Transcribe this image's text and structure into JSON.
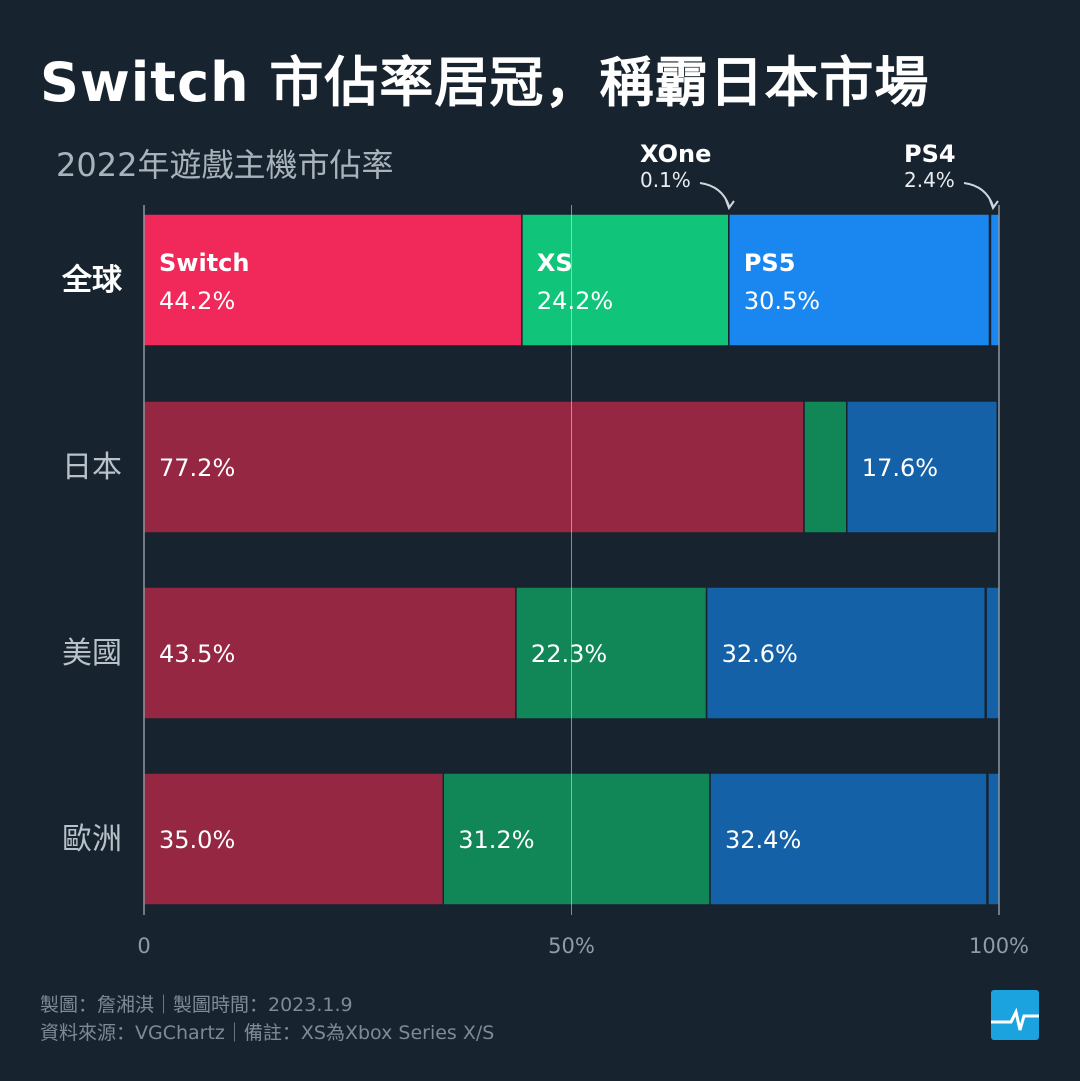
{
  "title": "Switch 市佔率居冠，稱霸日本市場",
  "subtitle": "2022年遊戲主機市佔率",
  "annotations": [
    {
      "name": "XOne",
      "value": "0.1%"
    },
    {
      "name": "PS4",
      "value": "2.4%"
    }
  ],
  "colors": {
    "background": "#17232e",
    "highlight": {
      "Switch": "#f0295a",
      "XS": "#10c57a",
      "PS5": "#1a86f0",
      "XOne": "#1a86f0",
      "PS4": "#1a86f0"
    },
    "muted": {
      "Switch": "#952743",
      "XS": "#118758",
      "PS5": "#1461a7",
      "XOne": "#1461a7",
      "PS4": "#1461a7"
    }
  },
  "chart_data": {
    "type": "bar",
    "orientation": "horizontal",
    "stacked": true,
    "title": "2022年遊戲主機市佔率",
    "categories": [
      "全球",
      "日本",
      "美國",
      "歐洲"
    ],
    "series": [
      {
        "name": "Switch",
        "values": [
          44.2,
          77.2,
          43.5,
          35.0
        ],
        "labels": [
          "44.2%",
          "77.2%",
          "43.5%",
          "35.0%"
        ]
      },
      {
        "name": "XS",
        "values": [
          24.2,
          5.0,
          22.3,
          31.2
        ],
        "labels": [
          "24.2%",
          null,
          "22.3%",
          "31.2%"
        ]
      },
      {
        "name": "PS5",
        "values": [
          30.5,
          17.6,
          32.6,
          32.4
        ],
        "labels": [
          "30.5%",
          "17.6%",
          "32.6%",
          "32.4%"
        ]
      },
      {
        "name": "XOne",
        "values": [
          0.1,
          0.1,
          0.1,
          0.1
        ],
        "labels": [
          null,
          null,
          null,
          null
        ]
      },
      {
        "name": "PS4",
        "values": [
          2.4,
          0.1,
          1.5,
          1.3
        ],
        "labels": [
          null,
          null,
          null,
          null
        ]
      }
    ],
    "xlim": [
      0,
      100
    ],
    "xticks": [
      "0",
      "50%",
      "100%"
    ],
    "xtick_values": [
      0,
      50,
      100
    ],
    "highlight_row": "全球"
  },
  "footer": {
    "line1": "製圖：詹湘淇｜製圖時間：2023.1.9",
    "line2": "資料來源：VGChartz｜備註：XS為Xbox Series X/S"
  }
}
